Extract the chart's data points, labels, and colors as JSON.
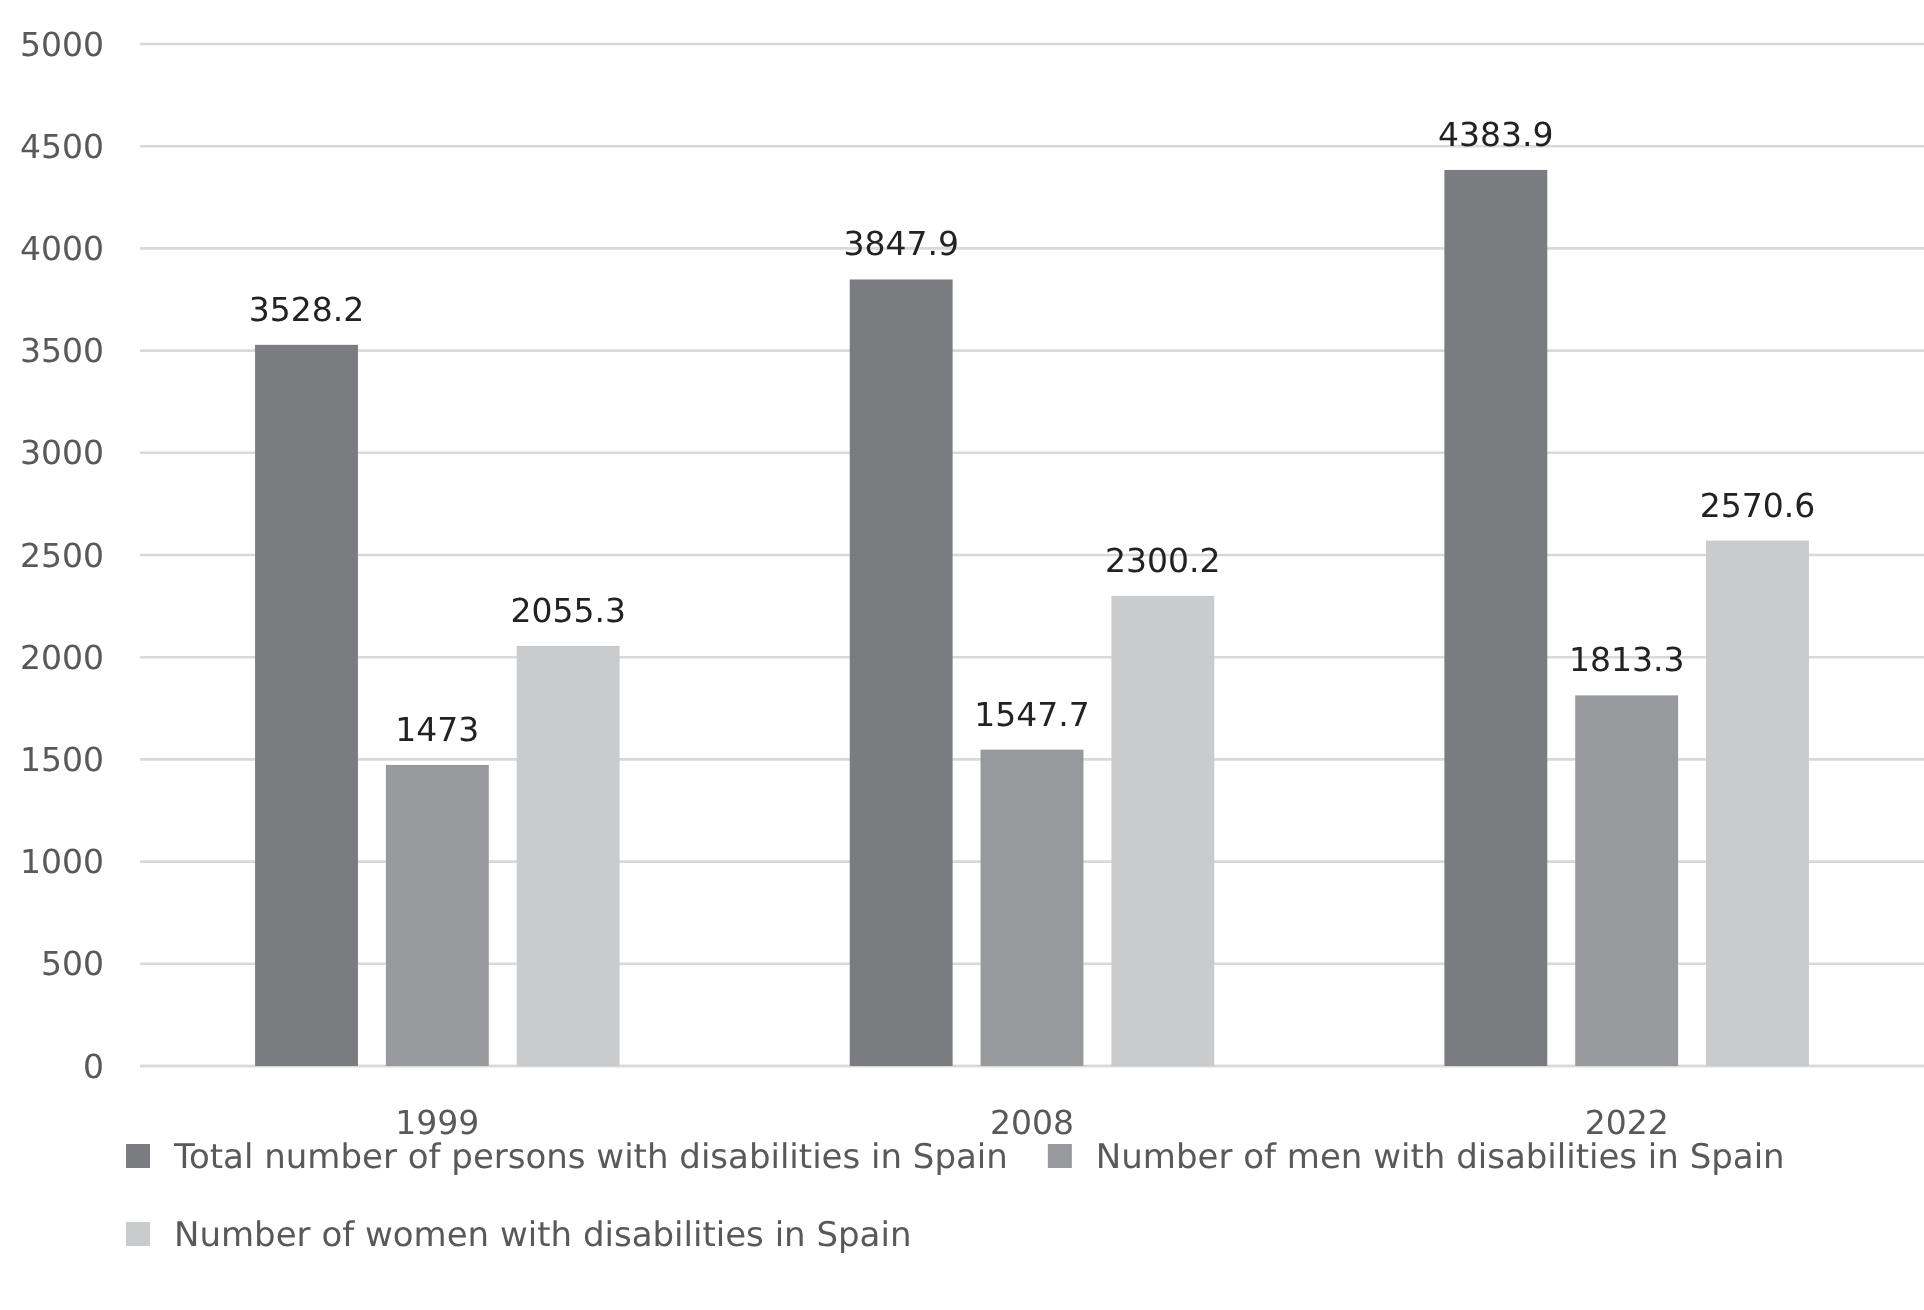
{
  "chart_data": {
    "type": "bar",
    "categories": [
      "1999",
      "2008",
      "2022"
    ],
    "series": [
      {
        "name": "Total number of persons with disabilities in Spain",
        "color": "#7b7c80",
        "values": [
          3528.2,
          3847.9,
          4383.9
        ]
      },
      {
        "name": "Number of men with disabilities in Spain",
        "color": "#98999c",
        "values": [
          1473,
          1547.7,
          1813.3
        ]
      },
      {
        "name": "Number of women with disabilities in Spain",
        "color": "#cacbcd",
        "values": [
          2055.3,
          2300.2,
          2570.6
        ]
      }
    ],
    "ylim": [
      0,
      5000
    ],
    "yticks": [
      0,
      500,
      1000,
      1500,
      2000,
      2500,
      3000,
      3500,
      4000,
      4500,
      5000
    ],
    "grid": "y",
    "data_labels": true,
    "legend": "bottom"
  }
}
